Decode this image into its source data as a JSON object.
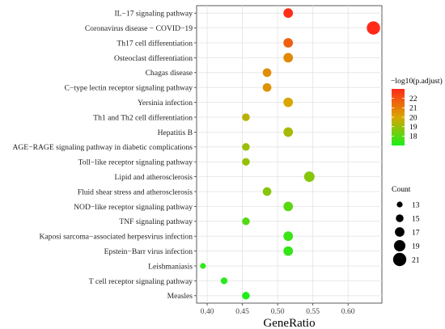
{
  "chart_data": {
    "type": "scatter",
    "xlabel": "GeneRatio",
    "x_ticks": [
      "0.40",
      "0.45",
      "0.50",
      "0.55",
      "0.60"
    ],
    "xlim": [
      0.385,
      0.648
    ],
    "grid": true,
    "points": [
      {
        "term": "IL−17 signaling pathway",
        "gene_ratio": 0.515,
        "count": 17,
        "neg_log10_padj": 22.9
      },
      {
        "term": "Coronavirus disease − COVID−19",
        "gene_ratio": 0.636,
        "count": 21,
        "neg_log10_padj": 23.0
      },
      {
        "term": "Th17 cell differentiation",
        "gene_ratio": 0.515,
        "count": 17,
        "neg_log10_padj": 21.7
      },
      {
        "term": "Osteoclast differentiation",
        "gene_ratio": 0.515,
        "count": 17,
        "neg_log10_padj": 20.7
      },
      {
        "term": "Chagas disease",
        "gene_ratio": 0.485,
        "count": 16,
        "neg_log10_padj": 20.6
      },
      {
        "term": "C−type lectin receptor signaling pathway",
        "gene_ratio": 0.485,
        "count": 16,
        "neg_log10_padj": 20.5
      },
      {
        "term": "Yersinia infection",
        "gene_ratio": 0.515,
        "count": 17,
        "neg_log10_padj": 20.0
      },
      {
        "term": "Th1 and Th2 cell differentiation",
        "gene_ratio": 0.455,
        "count": 15,
        "neg_log10_padj": 19.5
      },
      {
        "term": "Hepatitis B",
        "gene_ratio": 0.515,
        "count": 17,
        "neg_log10_padj": 19.2
      },
      {
        "term": "AGE−RAGE signaling pathway in diabetic complications",
        "gene_ratio": 0.455,
        "count": 15,
        "neg_log10_padj": 19.0
      },
      {
        "term": "Toll−like receptor signaling pathway",
        "gene_ratio": 0.455,
        "count": 15,
        "neg_log10_padj": 18.9
      },
      {
        "term": "Lipid and atherosclerosis",
        "gene_ratio": 0.545,
        "count": 18,
        "neg_log10_padj": 18.7
      },
      {
        "term": "Fluid shear stress and atherosclerosis",
        "gene_ratio": 0.485,
        "count": 16,
        "neg_log10_padj": 18.7
      },
      {
        "term": "NOD−like receptor signaling pathway",
        "gene_ratio": 0.515,
        "count": 17,
        "neg_log10_padj": 18.0
      },
      {
        "term": "TNF signaling pathway",
        "gene_ratio": 0.455,
        "count": 15,
        "neg_log10_padj": 17.9
      },
      {
        "term": "Kaposi sarcoma−associated herpesvirus infection",
        "gene_ratio": 0.515,
        "count": 17,
        "neg_log10_padj": 17.5
      },
      {
        "term": "Epstein−Barr virus infection",
        "gene_ratio": 0.515,
        "count": 17,
        "neg_log10_padj": 17.4
      },
      {
        "term": "Leishmaniasis",
        "gene_ratio": 0.394,
        "count": 13,
        "neg_log10_padj": 17.3
      },
      {
        "term": "T cell receptor signaling pathway",
        "gene_ratio": 0.424,
        "count": 14,
        "neg_log10_padj": 17.2
      },
      {
        "term": "Measles",
        "gene_ratio": 0.455,
        "count": 15,
        "neg_log10_padj": 17.1
      }
    ],
    "color_legend": {
      "title": "−log10(p.adjust)",
      "ticks": [
        "22",
        "21",
        "20",
        "19",
        "18"
      ],
      "range": [
        17.0,
        23.0
      ],
      "colors": {
        "high": "#ff2a1a",
        "mid": "#d9a600",
        "low": "#1af01a"
      }
    },
    "size_legend": {
      "title": "Count",
      "values": [
        "13",
        "15",
        "17",
        "19",
        "21"
      ],
      "range": [
        13,
        21
      ]
    }
  }
}
